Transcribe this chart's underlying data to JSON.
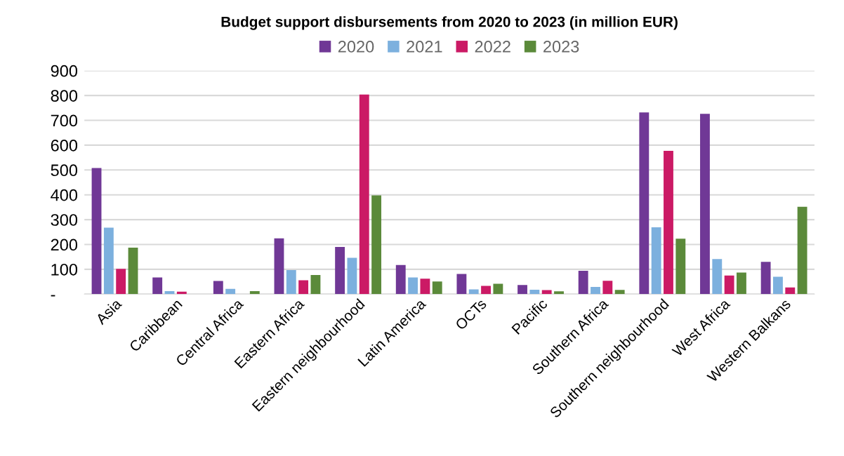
{
  "chart_data": {
    "type": "bar",
    "title": "Budget support disbursements from 2020 to 2023 (in million EUR)",
    "categories": [
      "Asia",
      "Caribbean",
      "Central Africa",
      "Eastern Africa",
      "Eastern neighbourhood",
      "Latin America",
      "OCTs",
      "Pacific",
      "Southern Africa",
      "Southern neighbourhood",
      "West Africa",
      "Western Balkans"
    ],
    "series": [
      {
        "name": "2020",
        "color": "#703896",
        "values": [
          508,
          67,
          53,
          225,
          190,
          117,
          81,
          37,
          94,
          732,
          726,
          130
        ]
      },
      {
        "name": "2021",
        "color": "#7cb0de",
        "values": [
          268,
          12,
          21,
          97,
          146,
          67,
          19,
          18,
          29,
          269,
          141,
          70
        ]
      },
      {
        "name": "2022",
        "color": "#cb1a65",
        "values": [
          102,
          10,
          null,
          56,
          804,
          62,
          33,
          16,
          54,
          577,
          75,
          27
        ]
      },
      {
        "name": "2023",
        "color": "#5b8a3a",
        "values": [
          187,
          null,
          12,
          77,
          398,
          51,
          42,
          11,
          17,
          223,
          87,
          352
        ]
      }
    ],
    "ylim": [
      0,
      900
    ],
    "yticks": [
      {
        "value": 0,
        "label": "-"
      },
      100,
      200,
      300,
      400,
      500,
      600,
      700,
      800,
      900
    ],
    "grid": "y",
    "legend": "top"
  }
}
